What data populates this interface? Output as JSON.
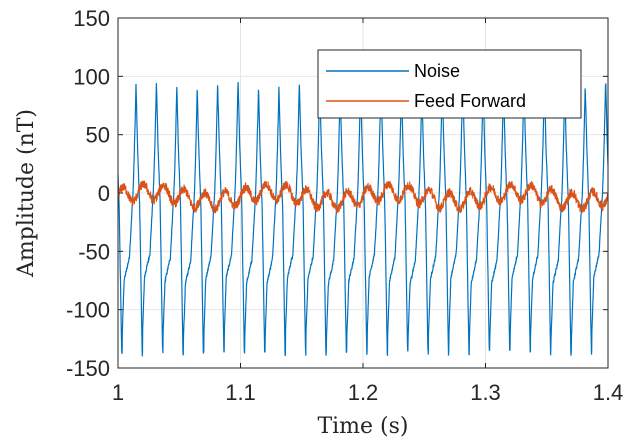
{
  "chart_data": {
    "type": "line",
    "title": "",
    "xlabel": "Time (s)",
    "ylabel": "Amplitude (nT)",
    "xlim": [
      1.0,
      1.4
    ],
    "ylim": [
      -150,
      150
    ],
    "xticks": [
      "1",
      "1.1",
      "1.2",
      "1.3",
      "1.4"
    ],
    "yticks": [
      "150",
      "100",
      "50",
      "0",
      "-50",
      "-100",
      "-150"
    ],
    "grid": true,
    "legend_position": "top-right",
    "series": [
      {
        "name": "Noise",
        "color": "#0072BD",
        "period_s": 0.01667,
        "peak_max": 93,
        "peak_min": -140,
        "first_peak_x": 1.018,
        "first_trough_x": 1.003
      },
      {
        "name": "Feed Forward",
        "color": "#D95319",
        "mean": -3,
        "min": -22,
        "max": 10
      }
    ]
  }
}
